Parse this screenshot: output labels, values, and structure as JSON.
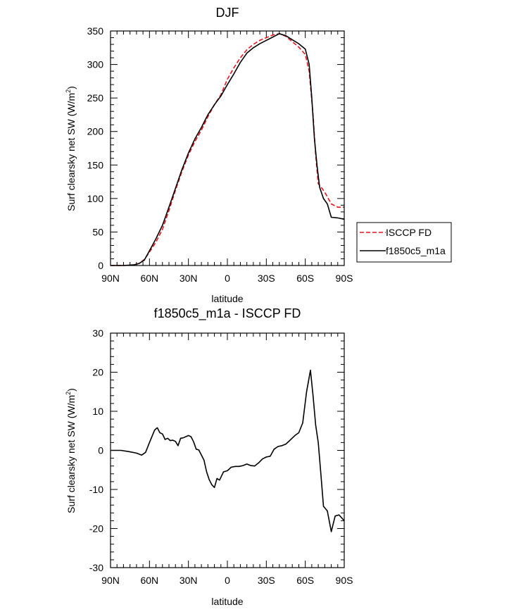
{
  "chart_data": [
    {
      "type": "line",
      "title": "DJF",
      "xlabel": "latitude",
      "ylabel": "Surf clearsky net SW (W/m",
      "ylabel_sup": "2",
      "ylabel_end": ")",
      "xlim": [
        90,
        -90
      ],
      "ylim": [
        0,
        350
      ],
      "x_ticks": [
        90,
        60,
        30,
        0,
        -30,
        -60,
        -90
      ],
      "x_tick_labels": [
        "90N",
        "60N",
        "30N",
        "0",
        "30S",
        "60S",
        "90S"
      ],
      "y_ticks": [
        0,
        50,
        100,
        150,
        200,
        250,
        300,
        350
      ],
      "y_tick_labels": [
        "0",
        "50",
        "100",
        "150",
        "200",
        "250",
        "300",
        "350"
      ],
      "legend": "outside-right",
      "series": [
        {
          "name": "ISCCP FD",
          "color": "#e8141c",
          "dash": "dashed",
          "points": [
            [
              90,
              0
            ],
            [
              80,
              0
            ],
            [
              72,
              1
            ],
            [
              68,
              3
            ],
            [
              64,
              9
            ],
            [
              60,
              20
            ],
            [
              55,
              35
            ],
            [
              50,
              54
            ],
            [
              45,
              82
            ],
            [
              40,
              112
            ],
            [
              35,
              140
            ],
            [
              30,
              165
            ],
            [
              25,
              185
            ],
            [
              20,
              202
            ],
            [
              15,
              222
            ],
            [
              10,
              240
            ],
            [
              5,
              255
            ],
            [
              0,
              278
            ],
            [
              -5,
              295
            ],
            [
              -10,
              310
            ],
            [
              -15,
              322
            ],
            [
              -20,
              330
            ],
            [
              -25,
              336
            ],
            [
              -30,
              340
            ],
            [
              -35,
              344
            ],
            [
              -40,
              346
            ],
            [
              -45,
              342
            ],
            [
              -50,
              334
            ],
            [
              -55,
              326
            ],
            [
              -60,
              315
            ],
            [
              -63,
              290
            ],
            [
              -66,
              225
            ],
            [
              -68,
              165
            ],
            [
              -70,
              122
            ],
            [
              -73,
              115
            ],
            [
              -76,
              106
            ],
            [
              -80,
              92
            ],
            [
              -85,
              87
            ],
            [
              -90,
              87
            ]
          ]
        },
        {
          "name": "f1850c5_m1a",
          "color": "#000000",
          "dash": "solid",
          "points": [
            [
              90,
              0
            ],
            [
              80,
              0
            ],
            [
              72,
              1
            ],
            [
              68,
              3
            ],
            [
              64,
              8
            ],
            [
              60,
              22
            ],
            [
              55,
              40
            ],
            [
              50,
              60
            ],
            [
              45,
              87
            ],
            [
              40,
              115
            ],
            [
              35,
              143
            ],
            [
              30,
              168
            ],
            [
              25,
              189
            ],
            [
              20,
              206
            ],
            [
              15,
              225
            ],
            [
              10,
              240
            ],
            [
              5,
              253
            ],
            [
              0,
              270
            ],
            [
              -5,
              286
            ],
            [
              -10,
              303
            ],
            [
              -15,
              317
            ],
            [
              -20,
              325
            ],
            [
              -25,
              331
            ],
            [
              -30,
              336
            ],
            [
              -35,
              341
            ],
            [
              -40,
              346
            ],
            [
              -45,
              343
            ],
            [
              -50,
              337
            ],
            [
              -55,
              331
            ],
            [
              -60,
              323
            ],
            [
              -63,
              300
            ],
            [
              -65,
              250
            ],
            [
              -67,
              190
            ],
            [
              -69,
              150
            ],
            [
              -71,
              117
            ],
            [
              -74,
              100
            ],
            [
              -77,
              92
            ],
            [
              -80,
              72
            ],
            [
              -85,
              71
            ],
            [
              -90,
              69
            ]
          ]
        }
      ]
    },
    {
      "type": "line",
      "title": "f1850c5_m1a - ISCCP FD",
      "xlabel": "latitude",
      "ylabel": "Surf clearsky net SW (W/m",
      "ylabel_sup": "2",
      "ylabel_end": ")",
      "xlim": [
        90,
        -90
      ],
      "ylim": [
        -30,
        30
      ],
      "x_ticks": [
        90,
        60,
        30,
        0,
        -30,
        -60,
        -90
      ],
      "x_tick_labels": [
        "90N",
        "60N",
        "30N",
        "0",
        "30S",
        "60S",
        "90S"
      ],
      "y_ticks": [
        -30,
        -20,
        -10,
        0,
        10,
        20,
        30
      ],
      "y_tick_labels": [
        "-30",
        "-20",
        "-10",
        "0",
        "10",
        "20",
        "30"
      ],
      "series": [
        {
          "color": "#000000",
          "dash": "solid",
          "points": [
            [
              90,
              0
            ],
            [
              82,
              0
            ],
            [
              76,
              -0.3
            ],
            [
              70,
              -0.7
            ],
            [
              66,
              -1.2
            ],
            [
              63,
              -0.5
            ],
            [
              60,
              2
            ],
            [
              56,
              5.2
            ],
            [
              54,
              5.8
            ],
            [
              52,
              4.5
            ],
            [
              50,
              4.2
            ],
            [
              48,
              2.8
            ],
            [
              46,
              3.1
            ],
            [
              44,
              2.5
            ],
            [
              42,
              2.6
            ],
            [
              40,
              2.3
            ],
            [
              38,
              1.2
            ],
            [
              36,
              3.1
            ],
            [
              34,
              3.2
            ],
            [
              30,
              3.8
            ],
            [
              28,
              3.5
            ],
            [
              26,
              2.2
            ],
            [
              24,
              0.3
            ],
            [
              22,
              0.1
            ],
            [
              18,
              -2.5
            ],
            [
              16,
              -5.5
            ],
            [
              14,
              -7.5
            ],
            [
              12,
              -8.8
            ],
            [
              10,
              -9.5
            ],
            [
              8,
              -7.2
            ],
            [
              6,
              -7.6
            ],
            [
              3,
              -5.5
            ],
            [
              0,
              -5.2
            ],
            [
              -3,
              -4.3
            ],
            [
              -6,
              -4.1
            ],
            [
              -9,
              -4.1
            ],
            [
              -12,
              -3.9
            ],
            [
              -15,
              -3.5
            ],
            [
              -18,
              -3.9
            ],
            [
              -21,
              -4.0
            ],
            [
              -24,
              -3.2
            ],
            [
              -27,
              -2.2
            ],
            [
              -30,
              -1.7
            ],
            [
              -33,
              -1.5
            ],
            [
              -36,
              0.3
            ],
            [
              -39,
              1.0
            ],
            [
              -42,
              1.2
            ],
            [
              -45,
              1.6
            ],
            [
              -48,
              2.5
            ],
            [
              -52,
              3.8
            ],
            [
              -55,
              4.5
            ],
            [
              -58,
              7.0
            ],
            [
              -61,
              15.0
            ],
            [
              -64,
              20.5
            ],
            [
              -66,
              14.0
            ],
            [
              -68,
              6.5
            ],
            [
              -70,
              2.0
            ],
            [
              -72,
              -6.0
            ],
            [
              -74,
              -14.3
            ],
            [
              -77,
              -15.5
            ],
            [
              -80,
              -20.8
            ],
            [
              -83,
              -16.8
            ],
            [
              -86,
              -16.5
            ],
            [
              -90,
              -18.0
            ]
          ]
        }
      ]
    }
  ]
}
